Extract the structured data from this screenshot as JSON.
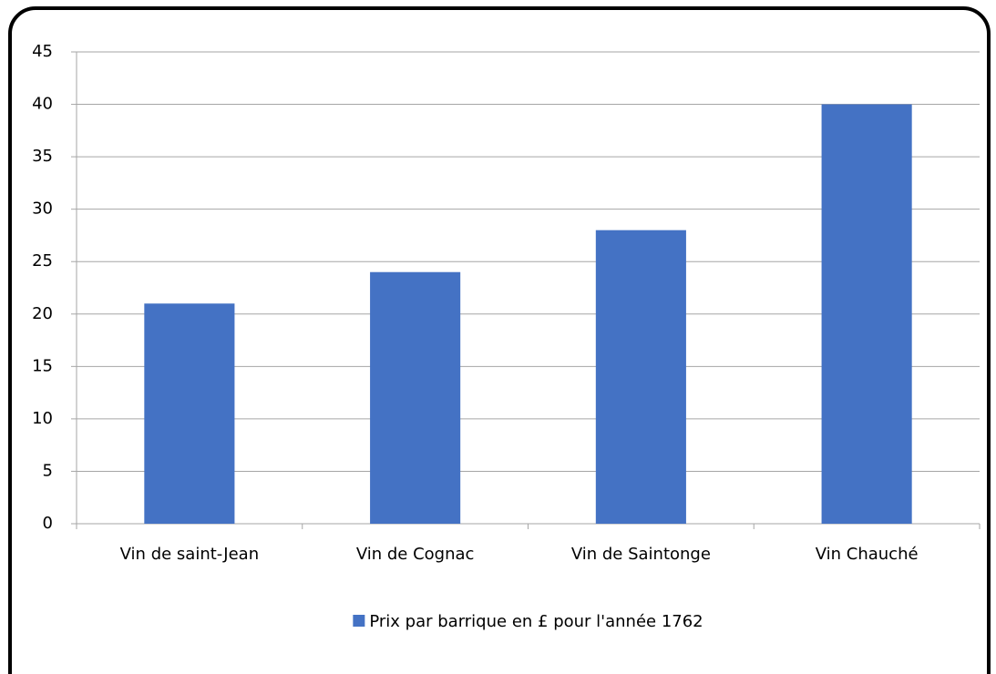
{
  "chart_data": {
    "type": "bar",
    "categories": [
      "Vin de saint-Jean",
      "Vin de Cognac",
      "Vin de Saintonge",
      "Vin Chauché"
    ],
    "series": [
      {
        "name": "Prix par barrique en £ pour l'année 1762",
        "color": "#4472c4",
        "values": [
          21,
          24,
          28,
          40
        ]
      }
    ],
    "ylim": [
      0,
      45
    ],
    "yticks": [
      0,
      5,
      10,
      15,
      20,
      25,
      30,
      35,
      40,
      45
    ],
    "grid": true,
    "legend": "bottom"
  }
}
